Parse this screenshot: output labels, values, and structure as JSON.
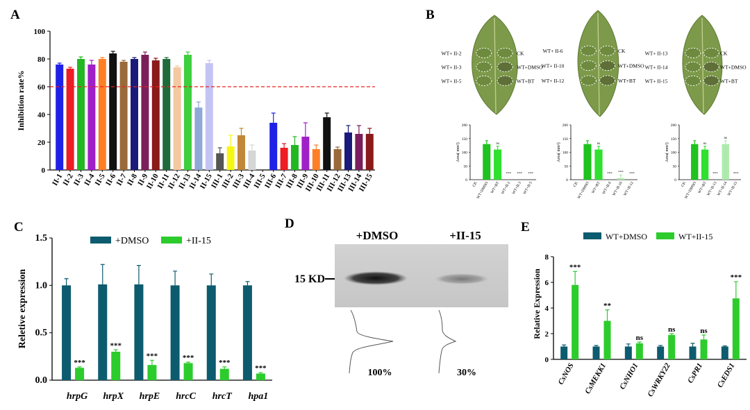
{
  "panel_letters": {
    "A": "A",
    "B": "B",
    "C": "C",
    "D": "D",
    "E": "E"
  },
  "colors": {
    "panelA": [
      "#1f22e6",
      "#ee1c24",
      "#23b823",
      "#a020c8",
      "#ff7f27",
      "#111111",
      "#9a6a3a",
      "#1a1a7a",
      "#7a1f5c",
      "#8b1a1a",
      "#1f6b3a",
      "#f4c8a0",
      "#3ecf3e",
      "#8fa8d8",
      "#c4c4f4"
    ],
    "panelA_ii": [
      "#555555",
      "#f7f716",
      "#c1873a",
      "#d6d6d6",
      "#d9d9d9",
      "#1f22e6",
      "#ee1c24",
      "#23b823",
      "#a020c8",
      "#ff7f27",
      "#111111",
      "#9a6a3a",
      "#1a1a7a",
      "#7a1f5c",
      "#8b1a1a"
    ],
    "dmso": "#0d5b6e",
    "ii15": "#2ccc2c",
    "threshold": "#e8201e"
  },
  "panelA": {
    "chart_data": {
      "type": "bar",
      "ylabel": "Inhibition rate%",
      "ylim": [
        0,
        100
      ],
      "yticks": [
        0,
        20,
        40,
        60,
        80,
        100
      ],
      "threshold": 60,
      "categories": [
        "II-1",
        "II-2",
        "II-3",
        "II-4",
        "II-5",
        "II-6",
        "II-7",
        "II-8",
        "II-9",
        "II-10",
        "II-11",
        "II-12",
        "II-13",
        "II-14",
        "II-15",
        "III-1",
        "III-2",
        "III-3",
        "III-4",
        "III-5",
        "III-6",
        "III-7",
        "III-8",
        "III-9",
        "III-10",
        "III-11",
        "III-12",
        "III-13",
        "III-14",
        "III-15"
      ],
      "values": [
        76,
        73,
        80,
        76,
        80,
        84,
        78,
        80,
        83,
        79,
        80,
        74,
        83,
        45,
        77,
        12,
        17,
        25,
        14,
        0,
        34,
        16,
        18,
        24,
        15,
        38,
        15,
        27,
        26,
        26
      ],
      "errors": [
        1,
        1,
        1.5,
        3,
        1,
        1.5,
        1,
        1,
        2,
        1.5,
        1,
        1,
        2,
        4,
        2,
        4,
        8,
        5,
        4,
        0,
        7,
        3,
        6,
        10,
        3,
        3,
        1.5,
        5,
        6,
        4
      ]
    }
  },
  "panelB": {
    "leaf_labels": [
      {
        "left": [
          "WT+ II-2",
          "WT+ II-3",
          "WT+ II-5"
        ],
        "right": [
          "CK",
          "WT+DMSO",
          "WT+BT"
        ]
      },
      {
        "left": [
          "WT+ II-6",
          "WT+ II-10",
          "WT+ II-12"
        ],
        "right": [
          "CK",
          "WT+DMSO",
          "WT+BT"
        ]
      },
      {
        "left": [
          "WT+ II-13",
          "WT+ II-14",
          "WT+ II-15"
        ],
        "right": [
          "CK",
          "WT+DMSO",
          "WT+BT"
        ]
      }
    ],
    "chart_data": [
      {
        "type": "bar",
        "ylabel": "Area( mm²)",
        "ylim": [
          0,
          200
        ],
        "yticks": [
          0,
          50,
          100,
          150,
          200
        ],
        "categories": [
          "CK",
          "WT+DMSO",
          "WT+BT",
          "WT+II-2",
          "WT+II-3",
          "WT+II-5"
        ],
        "values": [
          0,
          130,
          110,
          0,
          0,
          0
        ],
        "sig": [
          "",
          "",
          "ns",
          "***",
          "***",
          "***"
        ]
      },
      {
        "type": "bar",
        "ylabel": "Area( mm²)",
        "ylim": [
          0,
          200
        ],
        "yticks": [
          0,
          50,
          100,
          150,
          200
        ],
        "categories": [
          "CK",
          "WT+DMSO",
          "WT+BT",
          "WT+II-6",
          "WT+II-10",
          "WT+II-12"
        ],
        "values": [
          0,
          130,
          110,
          0,
          5,
          0
        ],
        "sig": [
          "",
          "",
          "ns",
          "***",
          "***",
          "***"
        ]
      },
      {
        "type": "bar",
        "ylabel": "Area( mm²)",
        "ylim": [
          0,
          200
        ],
        "yticks": [
          0,
          50,
          100,
          150,
          200
        ],
        "categories": [
          "CK",
          "WT+DMSO",
          "WT+BT",
          "WT+II-13",
          "WT+II-14",
          "WT+II-15"
        ],
        "values": [
          0,
          130,
          110,
          0,
          130,
          0
        ],
        "sig": [
          "",
          "",
          "ns",
          "***",
          "ns",
          "***"
        ]
      }
    ]
  },
  "panelC": {
    "chart_data": {
      "type": "bar",
      "ylabel": "Reletive expression",
      "ylim": [
        0,
        1.5
      ],
      "yticks": [
        "0.0",
        "0.5",
        "1.0",
        "1.5"
      ],
      "categories": [
        "hrpG",
        "hrpX",
        "hrpE",
        "hrcC",
        "hrcT",
        "hpa1"
      ],
      "series": [
        {
          "name": "+DMSO",
          "values": [
            1.0,
            1.01,
            1.01,
            1.0,
            1.0,
            1.0
          ],
          "errors": [
            0.07,
            0.21,
            0.2,
            0.15,
            0.12,
            0.04
          ]
        },
        {
          "name": "+II-15",
          "values": [
            0.13,
            0.3,
            0.16,
            0.18,
            0.12,
            0.07
          ],
          "errors": [
            0.01,
            0.02,
            0.05,
            0.01,
            0.02,
            0.01
          ]
        }
      ],
      "sig": [
        "***",
        "***",
        "***",
        "***",
        "***",
        "***"
      ]
    }
  },
  "panelD": {
    "col_labels": [
      "+DMSO",
      "+II-15"
    ],
    "marker": "15 KD",
    "percent_labels": [
      "100%",
      "30%"
    ]
  },
  "panelE": {
    "chart_data": {
      "type": "bar",
      "ylabel": "Relative Expression",
      "ylim": [
        0,
        8
      ],
      "yticks": [
        "0",
        "2",
        "4",
        "6",
        "8"
      ],
      "categories": [
        "CsNOS",
        "CsMEKK1",
        "CsNHO1",
        "CsWRKY22",
        "CsPR1",
        "CsEDS1"
      ],
      "series": [
        {
          "name": "WT+DMSO",
          "values": [
            1.0,
            1.0,
            1.0,
            1.0,
            1.0,
            1.0
          ],
          "errors": [
            0.12,
            0.08,
            0.2,
            0.08,
            0.25,
            0.05
          ]
        },
        {
          "name": "WT+II-15",
          "values": [
            5.8,
            3.0,
            1.25,
            1.9,
            1.55,
            4.75
          ],
          "errors": [
            1.05,
            0.85,
            0.1,
            0.1,
            0.35,
            1.3
          ]
        }
      ],
      "sig": [
        "***",
        "**",
        "ns",
        "ns",
        "ns",
        "***"
      ]
    }
  }
}
